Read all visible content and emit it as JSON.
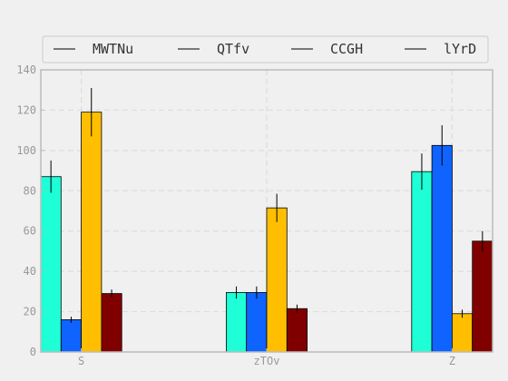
{
  "chart_data": {
    "type": "bar",
    "title": "",
    "xlabel": "",
    "ylabel": "",
    "categories": [
      "S",
      "zTOv",
      "Z"
    ],
    "ylim": [
      0,
      140
    ],
    "yticks": [
      0,
      20,
      40,
      60,
      80,
      100,
      120,
      140
    ],
    "grid": true,
    "legend_placement": "top",
    "series": [
      {
        "name": "MWTNu",
        "color": "#1effd7",
        "values": [
          87,
          29.5,
          89.5
        ],
        "errors": [
          8,
          3,
          9
        ]
      },
      {
        "name": "QTfv",
        "color": "#0f63ff",
        "values": [
          16,
          29.5,
          102.5
        ],
        "errors": [
          1.5,
          3,
          10
        ]
      },
      {
        "name": "CCGH",
        "color": "#ffbf00",
        "values": [
          119,
          71.5,
          19
        ],
        "errors": [
          12,
          7,
          2
        ]
      },
      {
        "name": "lYrD",
        "color": "#800000",
        "values": [
          29,
          21.5,
          55
        ],
        "errors": [
          2,
          2,
          5
        ]
      }
    ]
  }
}
